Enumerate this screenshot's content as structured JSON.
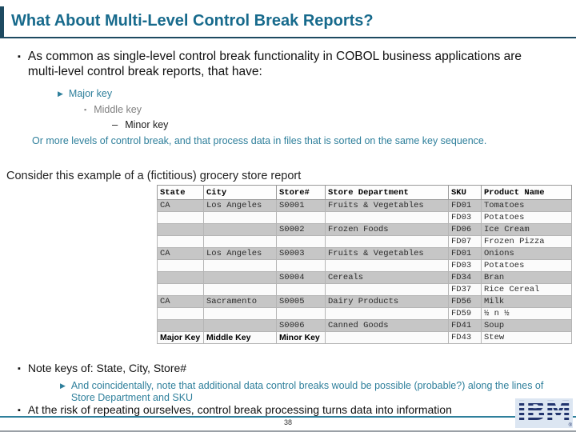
{
  "slide": {
    "title": "What About Multi-Level Control Break Reports?",
    "page_number": "38"
  },
  "icons": {
    "square_bullet": "▪",
    "arrow_bullet": "▶",
    "dash_bullet": "–"
  },
  "bullets": {
    "intro": "As common as single-level control break functionality in COBOL business applications are multi-level control break reports, that have:",
    "major_key": "Major key",
    "middle_key": "Middle key",
    "minor_key": "Minor key",
    "or_more": "Or more levels of control break, and that process data in files that is sorted on the same key sequence.",
    "consider": "Consider this example of a (fictitious) grocery store report",
    "note_keys": "Note keys of: State, City, Store#",
    "coincidentally": "And coincidentally, note that additional data control breaks would be possible (probable?) along the lines of Store Department and SKU",
    "at_risk": "At the risk of repeating ourselves, control break processing turns data into information"
  },
  "table": {
    "headers": [
      "State",
      "City",
      "Store#",
      "Store Department",
      "SKU",
      "Product Name"
    ],
    "rows": [
      [
        "CA",
        "Los Angeles",
        "S0001",
        "Fruits & Vegetables",
        "FD01",
        "Tomatoes"
      ],
      [
        "",
        "",
        "",
        "",
        "FD03",
        "Potatoes"
      ],
      [
        "",
        "",
        "S0002",
        "Frozen Foods",
        "FD06",
        "Ice Cream"
      ],
      [
        "",
        "",
        "",
        "",
        "FD07",
        "Frozen Pizza"
      ],
      [
        "CA",
        "Los Angeles",
        "S0003",
        "Fruits & Vegetables",
        "FD01",
        "Onions"
      ],
      [
        "",
        "",
        "",
        "",
        "FD03",
        "Potatoes"
      ],
      [
        "",
        "",
        "S0004",
        "Cereals",
        "FD34",
        "Bran"
      ],
      [
        "",
        "",
        "",
        "",
        "FD37",
        "Rice Cereal"
      ],
      [
        "CA",
        "Sacramento",
        "S0005",
        "Dairy Products",
        "FD56",
        "Milk"
      ],
      [
        "",
        "",
        "",
        "",
        "FD59",
        "½ n ½"
      ],
      [
        "",
        "",
        "S0006",
        "Canned Goods",
        "FD41",
        "Soup"
      ],
      [
        "Major Key",
        "Middle Key",
        "Minor Key",
        "",
        "FD43",
        "Stew"
      ]
    ],
    "key_labels": [
      "Major Key",
      "Middle Key",
      "Minor Key"
    ]
  },
  "footer": {
    "logo_text": "IBM",
    "registered": "®"
  },
  "colors": {
    "title_teal": "#176a8c",
    "accent_teal": "#2e7f9b",
    "rule_navy": "#1d4a61",
    "gray_text": "#7f7f7f",
    "table_stripe": "#c6c6c6",
    "logo_navy": "#22356e",
    "logo_background": "#dce6f2"
  }
}
